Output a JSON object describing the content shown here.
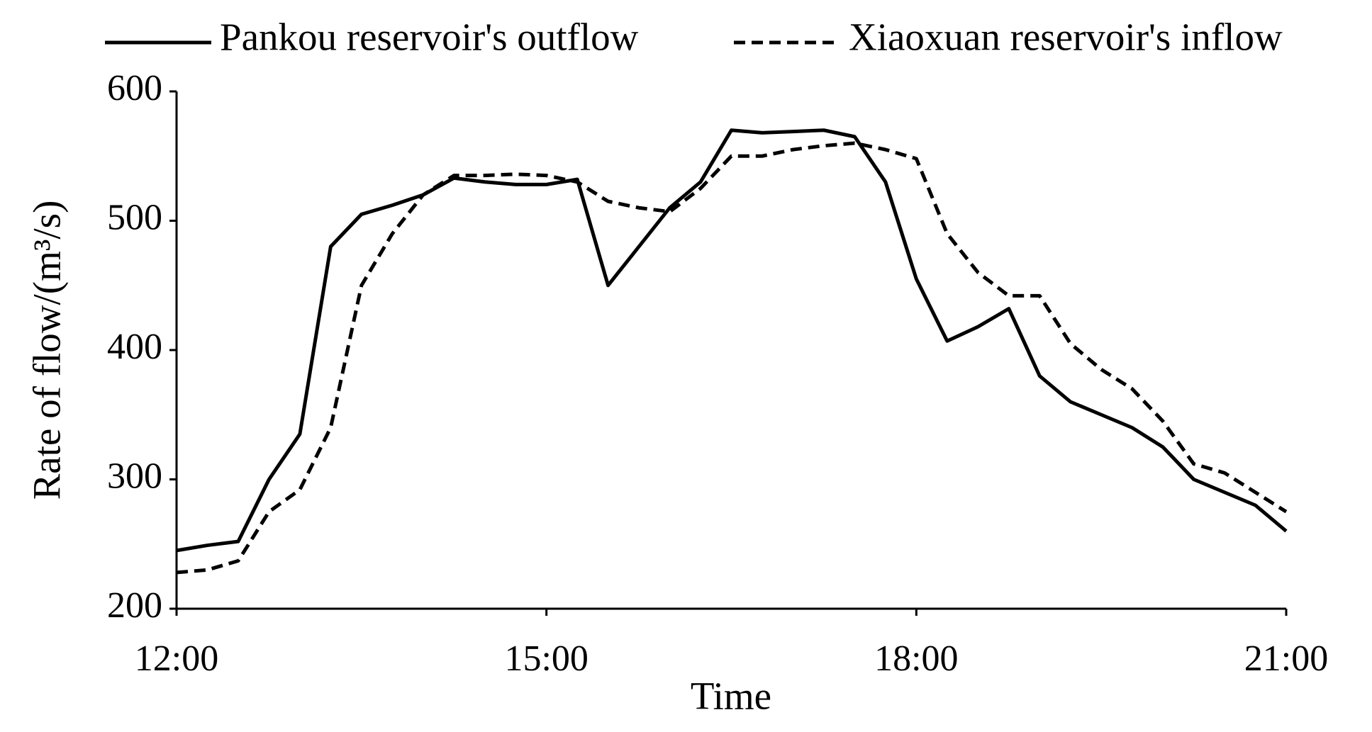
{
  "chart_data": {
    "type": "line",
    "x_label": "Time",
    "y_label": "Rate of flow/(m³/s)",
    "x": [
      12,
      12.25,
      12.5,
      12.75,
      13,
      13.25,
      13.5,
      13.75,
      14,
      14.25,
      14.5,
      14.75,
      15,
      15.25,
      15.5,
      15.75,
      16,
      16.25,
      16.5,
      16.75,
      17,
      17.25,
      17.5,
      17.75,
      18,
      18.25,
      18.5,
      18.75,
      19,
      19.25,
      19.5,
      19.75,
      20,
      20.25,
      20.5,
      20.75,
      21
    ],
    "series": [
      {
        "name": "Pankou reservoir's outflow",
        "color": "#000000",
        "dash": "solid",
        "values": [
          245,
          249,
          252,
          300,
          335,
          480,
          505,
          512,
          520,
          533,
          530,
          528,
          528,
          532,
          450,
          480,
          510,
          530,
          570,
          568,
          569,
          570,
          565,
          530,
          455,
          407,
          418,
          432,
          380,
          360,
          350,
          340,
          325,
          300,
          290,
          280,
          260
        ]
      },
      {
        "name": "Xiaoxuan reservoir's inflow",
        "color": "#000000",
        "dash": "dashed",
        "values": [
          228,
          230,
          237,
          275,
          292,
          340,
          450,
          490,
          520,
          535,
          535,
          536,
          535,
          530,
          515,
          510,
          507,
          525,
          550,
          550,
          555,
          558,
          560,
          555,
          548,
          490,
          460,
          442,
          442,
          405,
          385,
          370,
          345,
          312,
          305,
          290,
          275
        ]
      }
    ],
    "xlim": [
      12,
      21
    ],
    "xticks": [
      {
        "value": 12,
        "label": "12:00"
      },
      {
        "value": 15,
        "label": "15:00"
      },
      {
        "value": 18,
        "label": "18:00"
      },
      {
        "value": 21,
        "label": "21:00"
      }
    ],
    "ylim": [
      200,
      600
    ],
    "yticks": [
      200,
      300,
      400,
      500,
      600
    ],
    "grid": false,
    "legend": "top"
  }
}
